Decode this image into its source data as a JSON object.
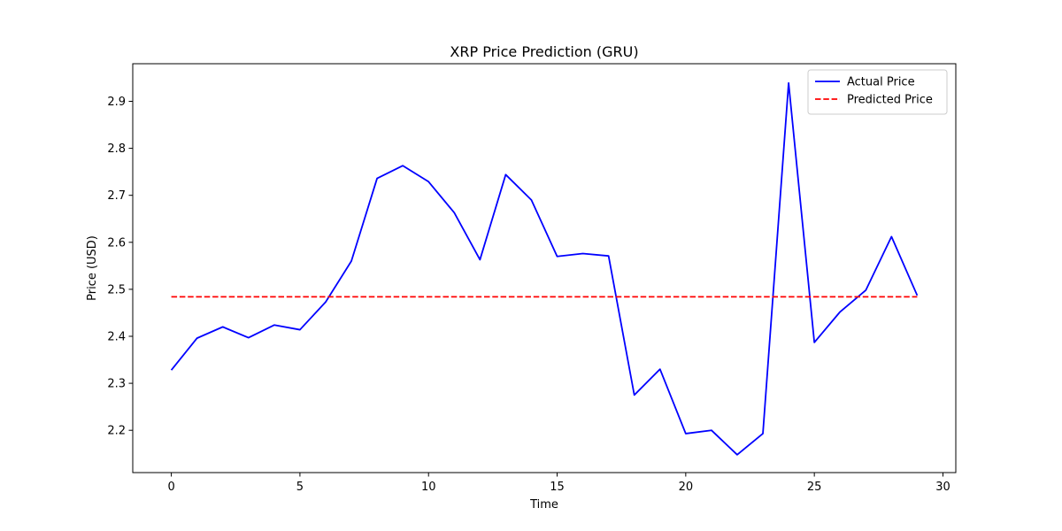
{
  "chart_data": {
    "type": "line",
    "title": "XRP Price Prediction (GRU)",
    "xlabel": "Time",
    "ylabel": "Price (USD)",
    "xlim": [
      -1.5,
      30.5
    ],
    "ylim": [
      2.11,
      2.98
    ],
    "xticks": [
      0,
      5,
      10,
      15,
      20,
      25,
      30
    ],
    "yticks": [
      2.2,
      2.3,
      2.4,
      2.5,
      2.6,
      2.7,
      2.8,
      2.9
    ],
    "xtick_labels": [
      "0",
      "5",
      "10",
      "15",
      "20",
      "25",
      "30"
    ],
    "ytick_labels": [
      "2.2",
      "2.3",
      "2.4",
      "2.5",
      "2.6",
      "2.7",
      "2.8",
      "2.9"
    ],
    "grid": false,
    "legend_position": "top-right",
    "x": [
      0,
      1,
      2,
      3,
      4,
      5,
      6,
      7,
      8,
      9,
      10,
      11,
      12,
      13,
      14,
      15,
      16,
      17,
      18,
      19,
      20,
      21,
      22,
      23,
      24,
      25,
      26,
      27,
      28,
      29
    ],
    "series": [
      {
        "name": "Actual Price",
        "color": "#0000ff",
        "style": "solid",
        "values": [
          2.328,
          2.396,
          2.42,
          2.397,
          2.424,
          2.414,
          2.473,
          2.56,
          2.736,
          2.763,
          2.729,
          2.663,
          2.563,
          2.744,
          2.69,
          2.57,
          2.576,
          2.571,
          2.275,
          2.33,
          2.193,
          2.2,
          2.148,
          2.193,
          2.939,
          2.387,
          2.452,
          2.498,
          2.612,
          2.487
        ]
      },
      {
        "name": "Predicted Price",
        "color": "#ff0000",
        "style": "dashed",
        "values": [
          2.484,
          2.484,
          2.484,
          2.484,
          2.484,
          2.484,
          2.484,
          2.484,
          2.484,
          2.484,
          2.484,
          2.484,
          2.484,
          2.484,
          2.484,
          2.484,
          2.484,
          2.484,
          2.484,
          2.484,
          2.484,
          2.484,
          2.484,
          2.484,
          2.484,
          2.484,
          2.484,
          2.484,
          2.484,
          2.484
        ]
      }
    ]
  }
}
